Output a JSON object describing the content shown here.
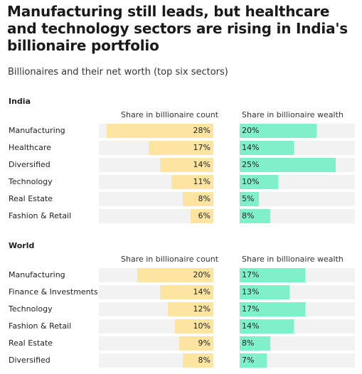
{
  "title": "Manufacturing still leads, but healthcare and technology sectors are rising in India's billionaire portfolio",
  "subtitle": "Billionaires and their net worth (top six sectors)",
  "colors": {
    "count_bar": "#fde4a1",
    "wealth_bar": "#7ff0c9",
    "track": "#f2f2f2"
  },
  "column_headers": {
    "count": "Share in billionaire count",
    "wealth": "Share in billionaire wealth"
  },
  "chart_data": [
    {
      "type": "bar",
      "panel": "India",
      "categories": [
        "Manufacturing",
        "Healthcare",
        "Diversified",
        "Technology",
        "Real Estate",
        "Fashion & Retail"
      ],
      "series": [
        {
          "name": "Share in billionaire count",
          "values": [
            28,
            17,
            14,
            11,
            8,
            6
          ],
          "labels": [
            "28%",
            "17%",
            "14%",
            "11%",
            "8%",
            "6%"
          ]
        },
        {
          "name": "Share in billionaire wealth",
          "values": [
            20,
            14,
            25,
            10,
            5,
            8
          ],
          "labels": [
            "20%",
            "14%",
            "25%",
            "10%",
            "5%",
            "8%"
          ]
        }
      ],
      "xlim": [
        0,
        30
      ],
      "grid": false
    },
    {
      "type": "bar",
      "panel": "World",
      "categories": [
        "Manufacturing",
        "Finance & Investments",
        "Technology",
        "Fashion & Retail",
        "Real Estate",
        "Diversified"
      ],
      "series": [
        {
          "name": "Share in billionaire count",
          "values": [
            20,
            14,
            12,
            10,
            9,
            8
          ],
          "labels": [
            "20%",
            "14%",
            "12%",
            "10%",
            "9%",
            "8%"
          ]
        },
        {
          "name": "Share in billionaire wealth",
          "values": [
            17,
            13,
            17,
            14,
            8,
            7
          ],
          "labels": [
            "17%",
            "13%",
            "17%",
            "14%",
            "8%",
            "7%"
          ]
        }
      ],
      "xlim": [
        0,
        30
      ],
      "grid": false
    }
  ]
}
